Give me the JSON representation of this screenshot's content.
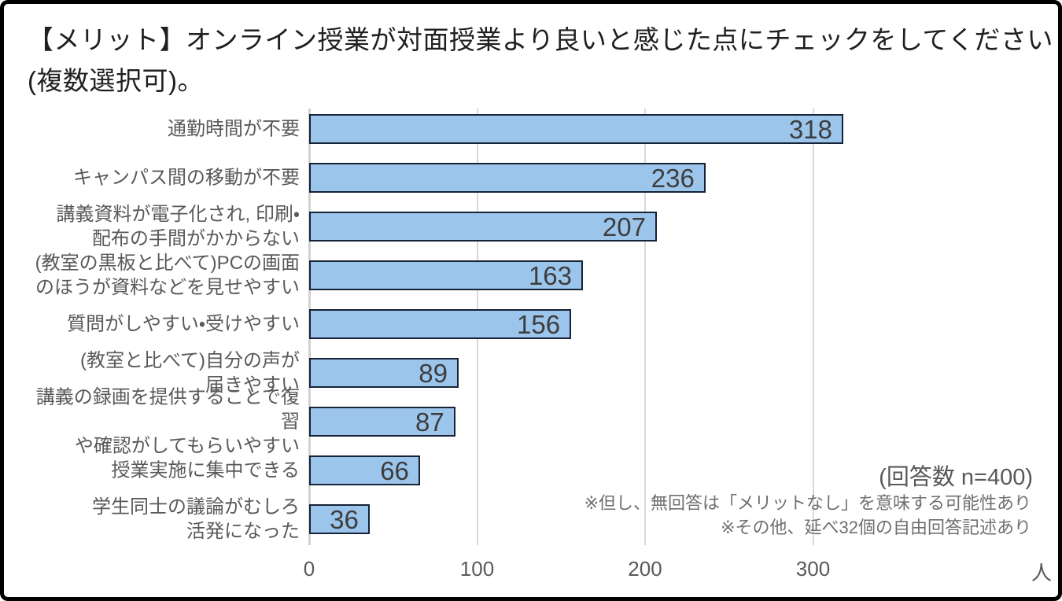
{
  "title": {
    "line1": "【メリット】オンライン授業が対面授業より良いと感じた点にチェックをしてください",
    "line2": "(複数選択可)。"
  },
  "chart_data": {
    "type": "bar",
    "orientation": "horizontal",
    "title": "【メリット】オンライン授業が対面授業より良いと感じた点にチェックをしてください(複数選択可)。",
    "categories": [
      "通勤時間が不要",
      "キャンパス間の移動が不要",
      "講義資料が電子化され, 印刷・配布の手間がかからない",
      "(教室の黒板と比べて)PCの画面のほうが資料などを見せやすい",
      "質問がしやすい・受けやすい",
      "(教室と比べて)自分の声が届きやすい",
      "講義の録画を提供することで復習や確認がしてもらいやすい",
      "授業実施に集中できる",
      "学生同士の議論がむしろ活発になった"
    ],
    "category_lines": [
      [
        "通勤時間が不要"
      ],
      [
        "キャンパス間の移動が不要"
      ],
      [
        "講義資料が電子化され, 印刷・",
        "配布の手間がかからない"
      ],
      [
        "(教室の黒板と比べて)PCの画面",
        "のほうが資料などを見せやすい"
      ],
      [
        "質問がしやすい・受けやすい"
      ],
      [
        "(教室と比べて)自分の声が",
        "届きやすい"
      ],
      [
        "講義の録画を提供することで復習",
        "や確認がしてもらいやすい"
      ],
      [
        "授業実施に集中できる"
      ],
      [
        "学生同士の議論がむしろ",
        "活発になった"
      ]
    ],
    "values": [
      318,
      236,
      207,
      163,
      156,
      89,
      87,
      66,
      36
    ],
    "x_ticks": [
      "0",
      "100",
      "200",
      "300"
    ],
    "x_tick_values": [
      0,
      100,
      200,
      300
    ],
    "x_unit": "人",
    "xlim": [
      0,
      441
    ],
    "grid": "vertical",
    "legend": "none",
    "data_labels": "inside-end",
    "colors": {
      "bar_fill": "#9cc5ec",
      "bar_border": "#162236",
      "gridline": "#d9d9d9",
      "label_text": "#595959",
      "value_text": "#3d3d3d"
    }
  },
  "annotations": {
    "respondents": "(回答数 n=400)",
    "note1": "※但し、無回答は「メリットなし」を意味する可能性あり",
    "note2": "※その他、延べ32個の自由回答記述あり"
  }
}
